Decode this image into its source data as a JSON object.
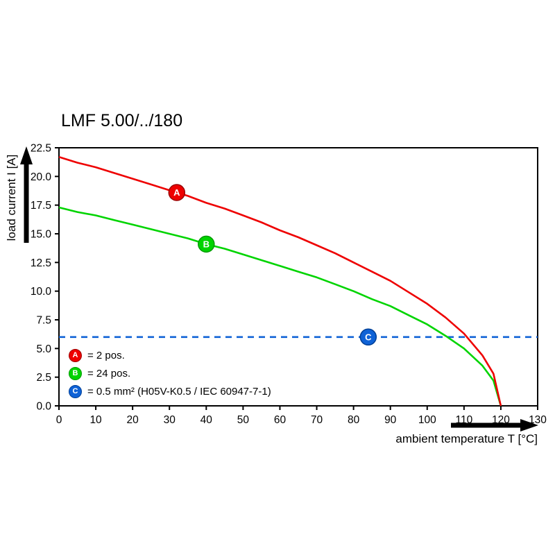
{
  "chart_data": {
    "type": "line",
    "title": "LMF 5.00/../180",
    "xlabel": "ambient temperature T [°C]",
    "ylabel": "load current I [A]",
    "xlim": [
      0,
      130
    ],
    "ylim": [
      0,
      22.5
    ],
    "x_ticks": [
      0,
      10,
      20,
      30,
      40,
      50,
      60,
      70,
      80,
      90,
      100,
      110,
      120,
      130
    ],
    "y_ticks": [
      "0.0",
      "2.5",
      "5.0",
      "7.5",
      "10.0",
      "12.5",
      "15.0",
      "17.5",
      "20.0",
      "22.5"
    ],
    "grid": false,
    "legend_position": "lower-left",
    "series": [
      {
        "name": "A",
        "legend": "= 2 pos.",
        "color": "#ee0000",
        "edge": "#9b0000",
        "dash": false,
        "x": [
          0,
          5,
          10,
          15,
          20,
          25,
          30,
          35,
          40,
          45,
          50,
          55,
          60,
          65,
          70,
          75,
          80,
          85,
          90,
          95,
          100,
          105,
          110,
          115,
          118,
          120
        ],
        "y": [
          21.7,
          21.2,
          20.8,
          20.3,
          19.8,
          19.3,
          18.8,
          18.3,
          17.7,
          17.2,
          16.6,
          16.0,
          15.3,
          14.7,
          14.0,
          13.3,
          12.5,
          11.7,
          10.9,
          9.9,
          8.9,
          7.7,
          6.3,
          4.4,
          2.8,
          0
        ],
        "marker": {
          "x": 32,
          "y": 18.6
        }
      },
      {
        "name": "B",
        "legend": "= 24 pos.",
        "color": "#00d400",
        "edge": "#009a00",
        "dash": false,
        "x": [
          0,
          5,
          10,
          15,
          20,
          25,
          30,
          35,
          40,
          45,
          50,
          55,
          60,
          65,
          70,
          75,
          80,
          85,
          90,
          95,
          100,
          105,
          110,
          115,
          118,
          120
        ],
        "y": [
          17.3,
          16.9,
          16.6,
          16.2,
          15.8,
          15.4,
          15.0,
          14.6,
          14.1,
          13.7,
          13.2,
          12.7,
          12.2,
          11.7,
          11.2,
          10.6,
          10.0,
          9.3,
          8.7,
          7.9,
          7.1,
          6.1,
          5.0,
          3.5,
          2.2,
          0
        ],
        "marker": {
          "x": 40,
          "y": 14.1
        }
      },
      {
        "name": "C",
        "legend": "= 0.5 mm² (H05V-K0.5 / IEC 60947-7-1)",
        "color": "#0f62d6",
        "edge": "#003f96",
        "dash": true,
        "x": [
          0,
          130
        ],
        "y": [
          6,
          6
        ],
        "marker": {
          "x": 84,
          "y": 6
        }
      }
    ]
  }
}
